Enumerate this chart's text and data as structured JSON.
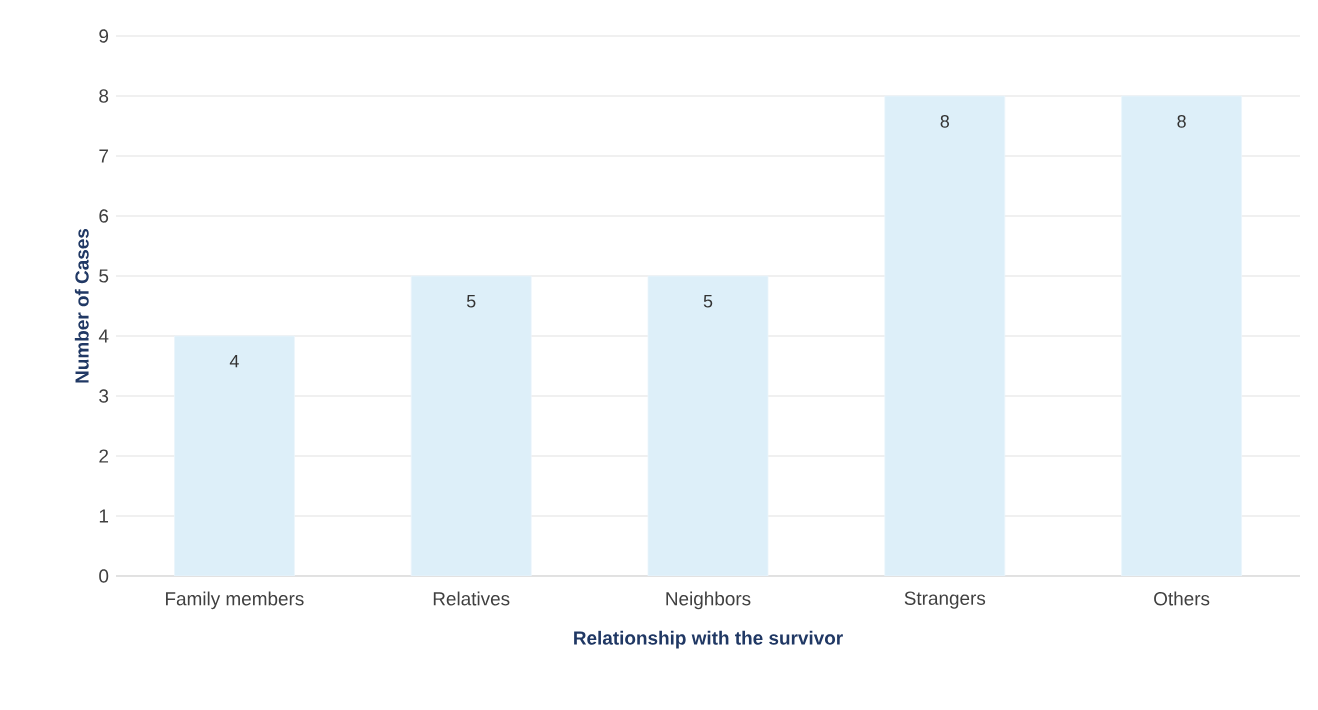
{
  "chart_data": {
    "type": "bar",
    "xlabel": "Relationship with the survivor",
    "ylabel": "Number of Cases",
    "categories": [
      "Family members",
      "Relatives",
      "Neighbors",
      "Strangers",
      "Others"
    ],
    "values": [
      4,
      5,
      5,
      8,
      8
    ],
    "color": "#ddeff9",
    "ylim": [
      0,
      9
    ],
    "yticks": [
      0,
      1,
      2,
      3,
      4,
      5,
      6,
      7,
      8,
      9
    ],
    "grid": "y",
    "data_labels": true
  }
}
